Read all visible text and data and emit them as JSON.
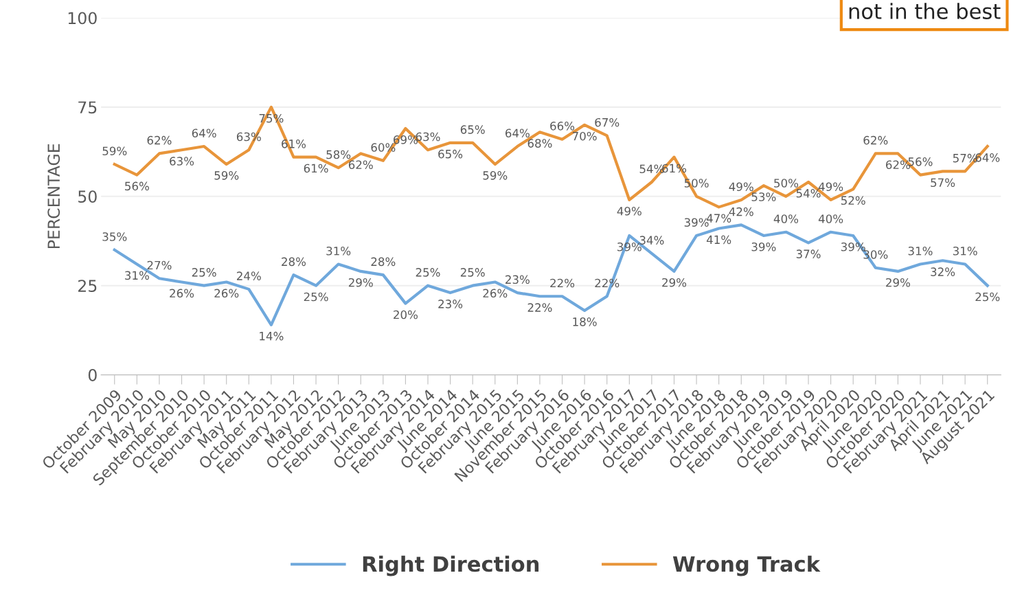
{
  "chart_data": {
    "type": "line",
    "ylabel": "PERCENTAGE",
    "ylim": [
      0,
      100
    ],
    "yticks": [
      0,
      25,
      50,
      75,
      100
    ],
    "grid": "y",
    "legend": "bottom",
    "marker": "none",
    "line_style": "solid",
    "annotations": [
      "not in the best"
    ],
    "categories": [
      "October 2009",
      "February 2010",
      "May 2010",
      "September 2010",
      "October 2010",
      "February 2011",
      "May 2011",
      "October 2011",
      "February 2012",
      "May 2012",
      "October 2012",
      "February 2013",
      "June 2013",
      "October 2013",
      "February 2014",
      "June 2014",
      "October 2014",
      "February 2015",
      "June 2015",
      "November 2015",
      "February 2016",
      "June 2016",
      "October 2016",
      "February 2017",
      "June 2017",
      "October 2017",
      "February 2018",
      "June 2018",
      "October 2018",
      "February 2019",
      "June 2019",
      "October 2019",
      "February 2020",
      "April 2020",
      "June 2020",
      "October 2020",
      "February 2021",
      "April 2021",
      "June 2021",
      "August 2021"
    ],
    "series": [
      {
        "name": "Right Direction",
        "color": "#6fa8dc",
        "values": [
          35,
          31,
          27,
          26,
          25,
          26,
          24,
          14,
          28,
          25,
          31,
          29,
          28,
          20,
          25,
          23,
          25,
          26,
          23,
          22,
          22,
          18,
          22,
          39,
          34,
          29,
          39,
          41,
          42,
          39,
          40,
          37,
          40,
          39,
          30,
          29,
          31,
          32,
          31,
          25
        ],
        "value_labels": [
          "35%",
          "31%",
          "27%",
          "26%",
          "25%",
          "26%",
          "24%",
          "14%",
          "28%",
          "25%",
          "31%",
          "29%",
          "28%",
          "20%",
          "25%",
          "23%",
          "25%",
          "26%",
          "23%",
          "22%",
          "22%",
          "18%",
          "22%",
          "39%",
          "34%",
          "29%",
          "39%",
          "41%",
          "42%",
          "39%",
          "40%",
          "37%",
          "40%",
          "39%",
          "30%",
          "29%",
          "31%",
          "32%",
          "31%",
          "25%"
        ]
      },
      {
        "name": "Wrong Track",
        "color": "#e8953a",
        "values": [
          59,
          56,
          62,
          63,
          64,
          59,
          63,
          75,
          61,
          61,
          58,
          62,
          60,
          69,
          63,
          65,
          65,
          59,
          64,
          68,
          66,
          70,
          67,
          49,
          54,
          61,
          50,
          47,
          49,
          53,
          50,
          54,
          49,
          52,
          62,
          62,
          56,
          57,
          57,
          64
        ],
        "value_labels": [
          "59%",
          "56%",
          "62%",
          "63%",
          "64%",
          "59%",
          "63%",
          "75%",
          "61%",
          "61%",
          "58%",
          "62%",
          "60%",
          "69%",
          "63%",
          "65%",
          "65%",
          "59%",
          "64%",
          "68%",
          "66%",
          "70%",
          "67%",
          "49%",
          "54%",
          "61%",
          "50%",
          "47%",
          "49%",
          "53%",
          "50%",
          "54%",
          "49%",
          "52%",
          "62%",
          "62%",
          "56%",
          "57%",
          "57%",
          "64%"
        ]
      }
    ]
  }
}
